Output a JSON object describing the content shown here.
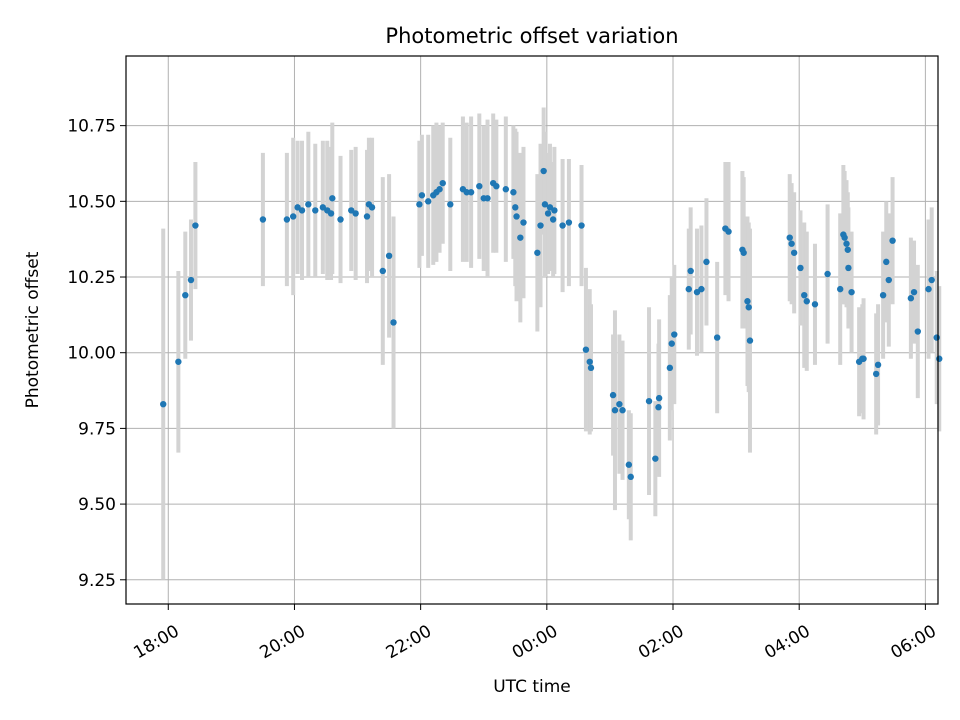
{
  "chart_data": {
    "type": "scatter",
    "title": "Photometric offset variation",
    "xlabel": "UTC time",
    "ylabel": "Photometric offset",
    "x_unit": "hours since 18:00 UTC",
    "xlim": [
      -0.67,
      12.2
    ],
    "ylim": [
      9.17,
      10.98
    ],
    "xticks": [
      0,
      2,
      4,
      6,
      8,
      10,
      12
    ],
    "xtick_labels": [
      "18:00",
      "20:00",
      "22:00",
      "00:00",
      "02:00",
      "04:00",
      "06:00"
    ],
    "yticks": [
      9.25,
      9.5,
      9.75,
      10.0,
      10.25,
      10.5,
      10.75
    ],
    "ytick_labels": [
      "9.25",
      "9.50",
      "9.75",
      "10.00",
      "10.25",
      "10.50",
      "10.75"
    ],
    "grid": true,
    "marker_color": "#1f77b4",
    "errorbar_color": "#d3d3d3",
    "points": [
      [
        -0.08,
        9.83,
        0.58
      ],
      [
        0.16,
        9.97,
        0.3
      ],
      [
        0.27,
        10.19,
        0.21
      ],
      [
        0.36,
        10.24,
        0.2
      ],
      [
        0.43,
        10.42,
        0.21
      ],
      [
        1.5,
        10.44,
        0.22
      ],
      [
        1.88,
        10.44,
        0.22
      ],
      [
        1.98,
        10.45,
        0.26
      ],
      [
        2.05,
        10.48,
        0.22
      ],
      [
        2.12,
        10.47,
        0.23
      ],
      [
        2.22,
        10.49,
        0.24
      ],
      [
        2.33,
        10.47,
        0.22
      ],
      [
        2.45,
        10.48,
        0.22
      ],
      [
        2.52,
        10.47,
        0.23
      ],
      [
        2.58,
        10.46,
        0.22
      ],
      [
        2.6,
        10.51,
        0.25
      ],
      [
        2.73,
        10.44,
        0.21
      ],
      [
        2.9,
        10.47,
        0.2
      ],
      [
        2.97,
        10.46,
        0.22
      ],
      [
        3.15,
        10.45,
        0.22
      ],
      [
        3.18,
        10.49,
        0.22
      ],
      [
        3.23,
        10.48,
        0.23
      ],
      [
        3.4,
        10.27,
        0.31
      ],
      [
        3.5,
        10.32,
        0.27
      ],
      [
        3.57,
        10.1,
        0.35
      ],
      [
        3.98,
        10.49,
        0.21
      ],
      [
        4.02,
        10.52,
        0.2
      ],
      [
        4.12,
        10.5,
        0.22
      ],
      [
        4.2,
        10.52,
        0.23
      ],
      [
        4.25,
        10.53,
        0.23
      ],
      [
        4.3,
        10.54,
        0.21
      ],
      [
        4.35,
        10.56,
        0.2
      ],
      [
        4.47,
        10.49,
        0.22
      ],
      [
        4.67,
        10.54,
        0.24
      ],
      [
        4.73,
        10.53,
        0.23
      ],
      [
        4.8,
        10.53,
        0.25
      ],
      [
        4.93,
        10.55,
        0.24
      ],
      [
        5.0,
        10.51,
        0.24
      ],
      [
        5.06,
        10.51,
        0.26
      ],
      [
        5.15,
        10.56,
        0.23
      ],
      [
        5.2,
        10.55,
        0.22
      ],
      [
        5.35,
        10.54,
        0.24
      ],
      [
        5.47,
        10.53,
        0.22
      ],
      [
        5.5,
        10.48,
        0.26
      ],
      [
        5.52,
        10.45,
        0.28
      ],
      [
        5.58,
        10.38,
        0.28
      ],
      [
        5.63,
        10.43,
        0.25
      ],
      [
        5.85,
        10.33,
        0.26
      ],
      [
        5.9,
        10.42,
        0.27
      ],
      [
        5.95,
        10.6,
        0.21
      ],
      [
        5.97,
        10.49,
        0.24
      ],
      [
        6.02,
        10.46,
        0.2
      ],
      [
        6.05,
        10.48,
        0.21
      ],
      [
        6.1,
        10.44,
        0.19
      ],
      [
        6.12,
        10.47,
        0.21
      ],
      [
        6.25,
        10.42,
        0.22
      ],
      [
        6.35,
        10.43,
        0.21
      ],
      [
        6.55,
        10.42,
        0.2
      ],
      [
        6.62,
        10.01,
        0.27
      ],
      [
        6.68,
        9.97,
        0.24
      ],
      [
        6.7,
        9.95,
        0.21
      ],
      [
        7.05,
        9.86,
        0.2
      ],
      [
        7.08,
        9.81,
        0.33
      ],
      [
        7.15,
        9.83,
        0.23
      ],
      [
        7.2,
        9.81,
        0.23
      ],
      [
        7.3,
        9.63,
        0.18
      ],
      [
        7.33,
        9.59,
        0.21
      ],
      [
        7.62,
        9.84,
        0.31
      ],
      [
        7.72,
        9.65,
        0.19
      ],
      [
        7.77,
        9.82,
        0.21
      ],
      [
        7.78,
        9.85,
        0.26
      ],
      [
        7.95,
        9.95,
        0.24
      ],
      [
        7.98,
        10.03,
        0.22
      ],
      [
        8.02,
        10.06,
        0.23
      ],
      [
        8.25,
        10.21,
        0.2
      ],
      [
        8.28,
        10.27,
        0.21
      ],
      [
        8.38,
        10.2,
        0.21
      ],
      [
        8.45,
        10.21,
        0.21
      ],
      [
        8.53,
        10.3,
        0.21
      ],
      [
        8.7,
        10.05,
        0.25
      ],
      [
        8.83,
        10.41,
        0.22
      ],
      [
        8.88,
        10.4,
        0.23
      ],
      [
        9.1,
        10.34,
        0.26
      ],
      [
        9.12,
        10.33,
        0.25
      ],
      [
        9.18,
        10.17,
        0.28
      ],
      [
        9.2,
        10.15,
        0.28
      ],
      [
        9.22,
        10.04,
        0.37
      ],
      [
        9.85,
        10.38,
        0.21
      ],
      [
        9.88,
        10.36,
        0.2
      ],
      [
        9.92,
        10.33,
        0.2
      ],
      [
        10.02,
        10.28,
        0.19
      ],
      [
        10.08,
        10.19,
        0.24
      ],
      [
        10.12,
        10.17,
        0.23
      ],
      [
        10.25,
        10.16,
        0.2
      ],
      [
        10.45,
        10.26,
        0.23
      ],
      [
        10.65,
        10.21,
        0.25
      ],
      [
        10.7,
        10.39,
        0.23
      ],
      [
        10.72,
        10.38,
        0.22
      ],
      [
        10.75,
        10.36,
        0.21
      ],
      [
        10.77,
        10.34,
        0.19
      ],
      [
        10.78,
        10.28,
        0.2
      ],
      [
        10.83,
        10.2,
        0.2
      ],
      [
        10.95,
        9.97,
        0.18
      ],
      [
        11.0,
        9.98,
        0.18
      ],
      [
        11.02,
        9.98,
        0.2
      ],
      [
        11.22,
        9.93,
        0.2
      ],
      [
        11.25,
        9.96,
        0.2
      ],
      [
        11.33,
        10.19,
        0.21
      ],
      [
        11.38,
        10.3,
        0.2
      ],
      [
        11.42,
        10.24,
        0.22
      ],
      [
        11.48,
        10.37,
        0.21
      ],
      [
        11.77,
        10.18,
        0.2
      ],
      [
        11.82,
        10.2,
        0.17
      ],
      [
        11.88,
        10.07,
        0.22
      ],
      [
        12.05,
        10.21,
        0.23
      ],
      [
        12.1,
        10.24,
        0.24
      ],
      [
        12.18,
        10.05,
        0.22
      ],
      [
        12.22,
        9.98,
        0.24
      ]
    ]
  }
}
